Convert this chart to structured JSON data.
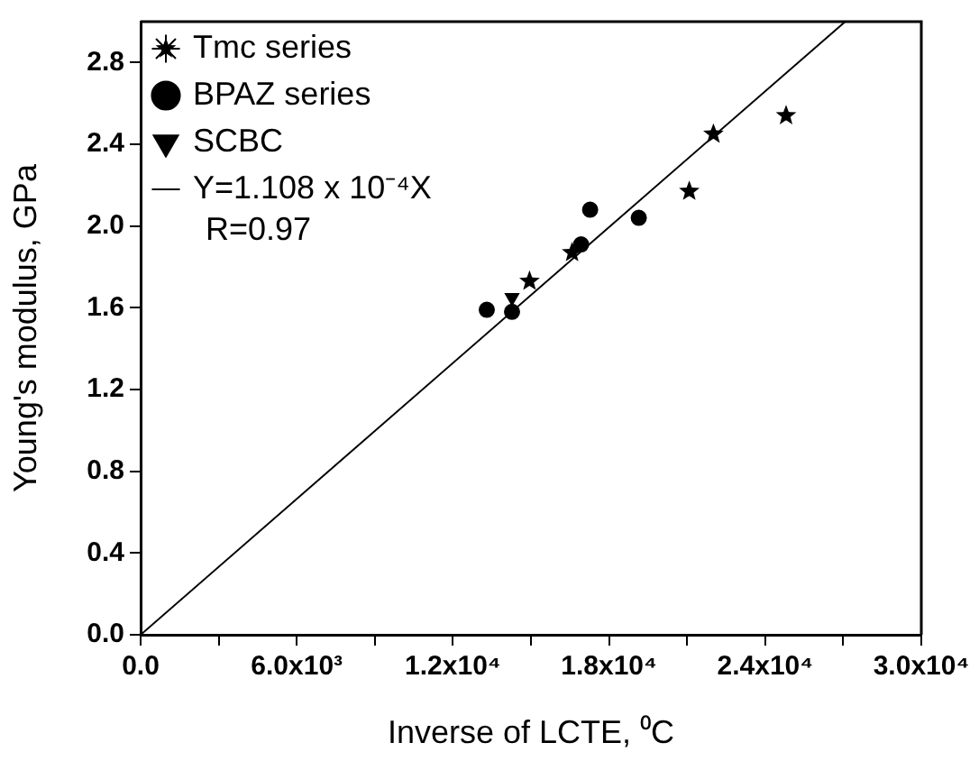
{
  "chart_data": {
    "type": "scatter",
    "xlabel": "Inverse of LCTE, ⁰C",
    "ylabel": "Young's modulus, GPa",
    "series": [
      {
        "name": "Tmc series",
        "color": "#000000",
        "marker": "star",
        "x": [
          22012,
          24804,
          21083,
          14945,
          16580
        ],
        "values": [
          2.45,
          2.54,
          2.17,
          1.73,
          1.87
        ]
      },
      {
        "name": "BPAZ series",
        "color": "#000000",
        "marker": "circle",
        "x": [
          13302,
          14272,
          16927,
          17273,
          19143
        ],
        "values": [
          1.59,
          1.58,
          1.91,
          2.08,
          2.04
        ]
      },
      {
        "name": "SCBC",
        "color": "#000000",
        "marker": "triangle",
        "x": [
          14272
        ],
        "values": [
          1.65
        ]
      },
      {
        "name": "Y=1.108 x 10⁻⁴X",
        "type": "line",
        "color": "#000000",
        "marker": "none",
        "line_style": "solid",
        "x": [
          0,
          27076
        ],
        "values": [
          0,
          3.0
        ]
      }
    ],
    "annotations": [
      "R=0.97"
    ],
    "xlim": [
      0,
      30000
    ],
    "xticks": [
      {
        "value": 0,
        "label": "0.0"
      },
      {
        "value": 3000,
        "label": null
      },
      {
        "value": 6000,
        "label": "6.0x10³"
      },
      {
        "value": 9000,
        "label": null
      },
      {
        "value": 12000,
        "label": "1.2x10⁴"
      },
      {
        "value": 15000,
        "label": null
      },
      {
        "value": 18000,
        "label": "1.8x10⁴"
      },
      {
        "value": 21000,
        "label": null
      },
      {
        "value": 24000,
        "label": "2.4x10⁴"
      },
      {
        "value": 27000,
        "label": null
      },
      {
        "value": 30000,
        "label": "3.0x10⁴"
      }
    ],
    "ylim": [
      0,
      3.0
    ],
    "yticks": [
      {
        "value": 0,
        "label": "0.0"
      },
      0.4,
      0.8,
      1.2,
      1.6,
      {
        "value": 2.0,
        "label": "2.0"
      },
      2.4,
      2.8
    ],
    "grid": false,
    "legend": "top left"
  }
}
